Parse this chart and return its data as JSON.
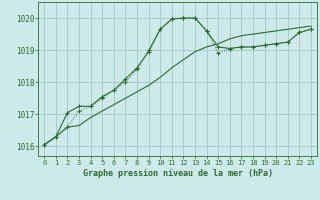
{
  "bg_color": "#cdeaea",
  "grid_color": "#aacccc",
  "line_color": "#2d6b2d",
  "title": "Graphe pression niveau de la mer (hPa)",
  "ylim": [
    1015.7,
    1020.5
  ],
  "yticks": [
    1016,
    1017,
    1018,
    1019,
    1020
  ],
  "xlim": [
    -0.5,
    23.5
  ],
  "xticks": [
    0,
    1,
    2,
    3,
    4,
    5,
    6,
    7,
    8,
    9,
    10,
    11,
    12,
    13,
    14,
    15,
    16,
    17,
    18,
    19,
    20,
    21,
    22,
    23
  ],
  "s1_x": [
    0,
    1,
    2,
    3,
    4,
    5,
    6,
    7,
    8,
    9,
    10,
    11,
    12,
    13,
    14,
    15,
    16,
    17,
    18,
    19,
    20,
    21,
    22,
    23
  ],
  "s1_y": [
    1016.05,
    1016.3,
    1016.6,
    1017.1,
    1017.25,
    1017.5,
    1017.75,
    1018.0,
    1018.4,
    1019.0,
    1019.65,
    1019.97,
    1020.0,
    1020.0,
    1019.6,
    1018.9,
    1019.05,
    1019.1,
    1019.1,
    1019.15,
    1019.2,
    1019.25,
    1019.55,
    1019.65
  ],
  "s2_x": [
    0,
    1,
    2,
    3,
    4,
    5,
    6,
    7,
    8,
    9,
    10,
    11,
    12,
    13,
    14,
    15,
    16,
    17,
    18,
    19,
    20,
    21,
    22,
    23
  ],
  "s2_y": [
    1016.05,
    1016.3,
    1017.05,
    1017.25,
    1017.25,
    1017.55,
    1017.75,
    1018.1,
    1018.45,
    1018.95,
    1019.65,
    1019.97,
    1020.0,
    1020.0,
    1019.6,
    1019.1,
    1019.05,
    1019.1,
    1019.1,
    1019.15,
    1019.2,
    1019.25,
    1019.55,
    1019.65
  ],
  "s3_x": [
    0,
    1,
    2,
    3,
    4,
    5,
    6,
    7,
    8,
    9,
    10,
    11,
    12,
    13,
    14,
    15,
    16,
    17,
    18,
    19,
    20,
    21,
    22,
    23
  ],
  "s3_y": [
    1016.05,
    1016.3,
    1016.6,
    1016.65,
    1016.9,
    1017.1,
    1017.3,
    1017.5,
    1017.7,
    1017.9,
    1018.15,
    1018.45,
    1018.7,
    1018.95,
    1019.1,
    1019.2,
    1019.35,
    1019.45,
    1019.5,
    1019.55,
    1019.6,
    1019.65,
    1019.7,
    1019.75
  ]
}
